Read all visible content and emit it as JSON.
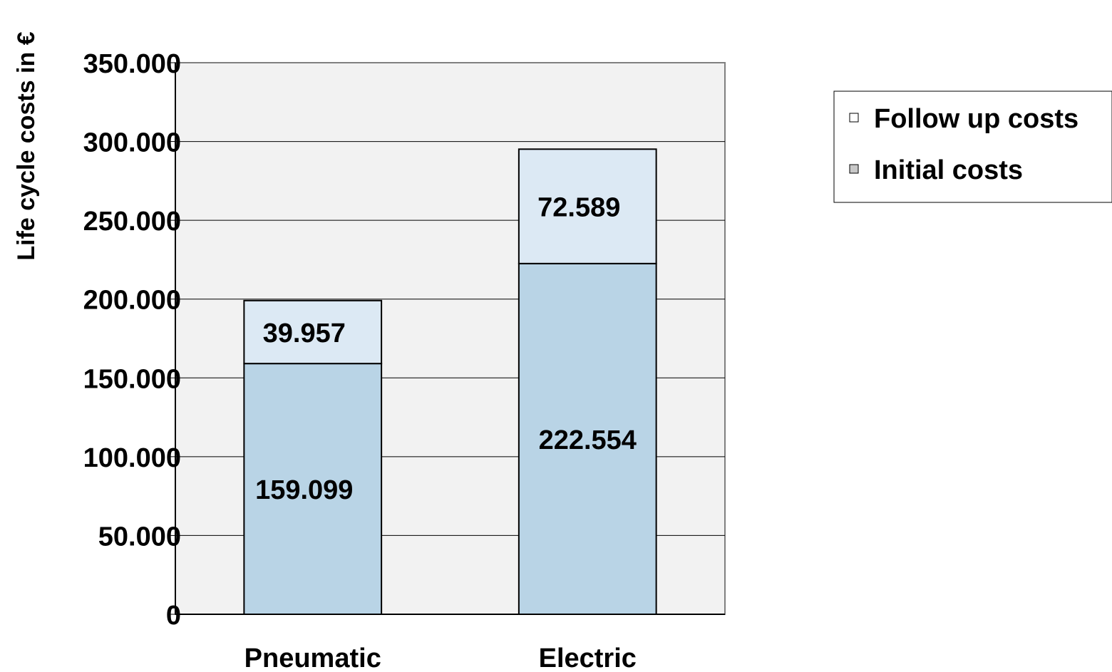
{
  "chart_data": {
    "type": "bar",
    "stacked": true,
    "categories": [
      "Pneumatic",
      "Electric"
    ],
    "series": [
      {
        "name": "Initial costs",
        "values": [
          159099,
          222554
        ],
        "labels": [
          "159.099",
          "222.554"
        ],
        "color": "#b9d4e6"
      },
      {
        "name": "Follow up costs",
        "values": [
          39957,
          72589
        ],
        "labels": [
          "39.957",
          "72.589"
        ],
        "color": "#dce9f4"
      }
    ],
    "ylabel": "Life cycle costs in €",
    "xlabel": "",
    "ylim": [
      0,
      350000
    ],
    "yticks": [
      {
        "value": 0,
        "label": "0"
      },
      {
        "value": 50000,
        "label": "50.000"
      },
      {
        "value": 100000,
        "label": "100.000"
      },
      {
        "value": 150000,
        "label": "150.000"
      },
      {
        "value": 200000,
        "label": "200.000"
      },
      {
        "value": 250000,
        "label": "250.000"
      },
      {
        "value": 300000,
        "label": "300.000"
      },
      {
        "value": 350000,
        "label": "350.000"
      }
    ],
    "grid": true,
    "plot_background": "#f2f2f2",
    "legend": {
      "placement": "right",
      "entries": [
        "Follow up costs",
        "Initial costs"
      ],
      "swatch_colors": [
        "#ffffff",
        "#c8c8c8"
      ]
    }
  }
}
